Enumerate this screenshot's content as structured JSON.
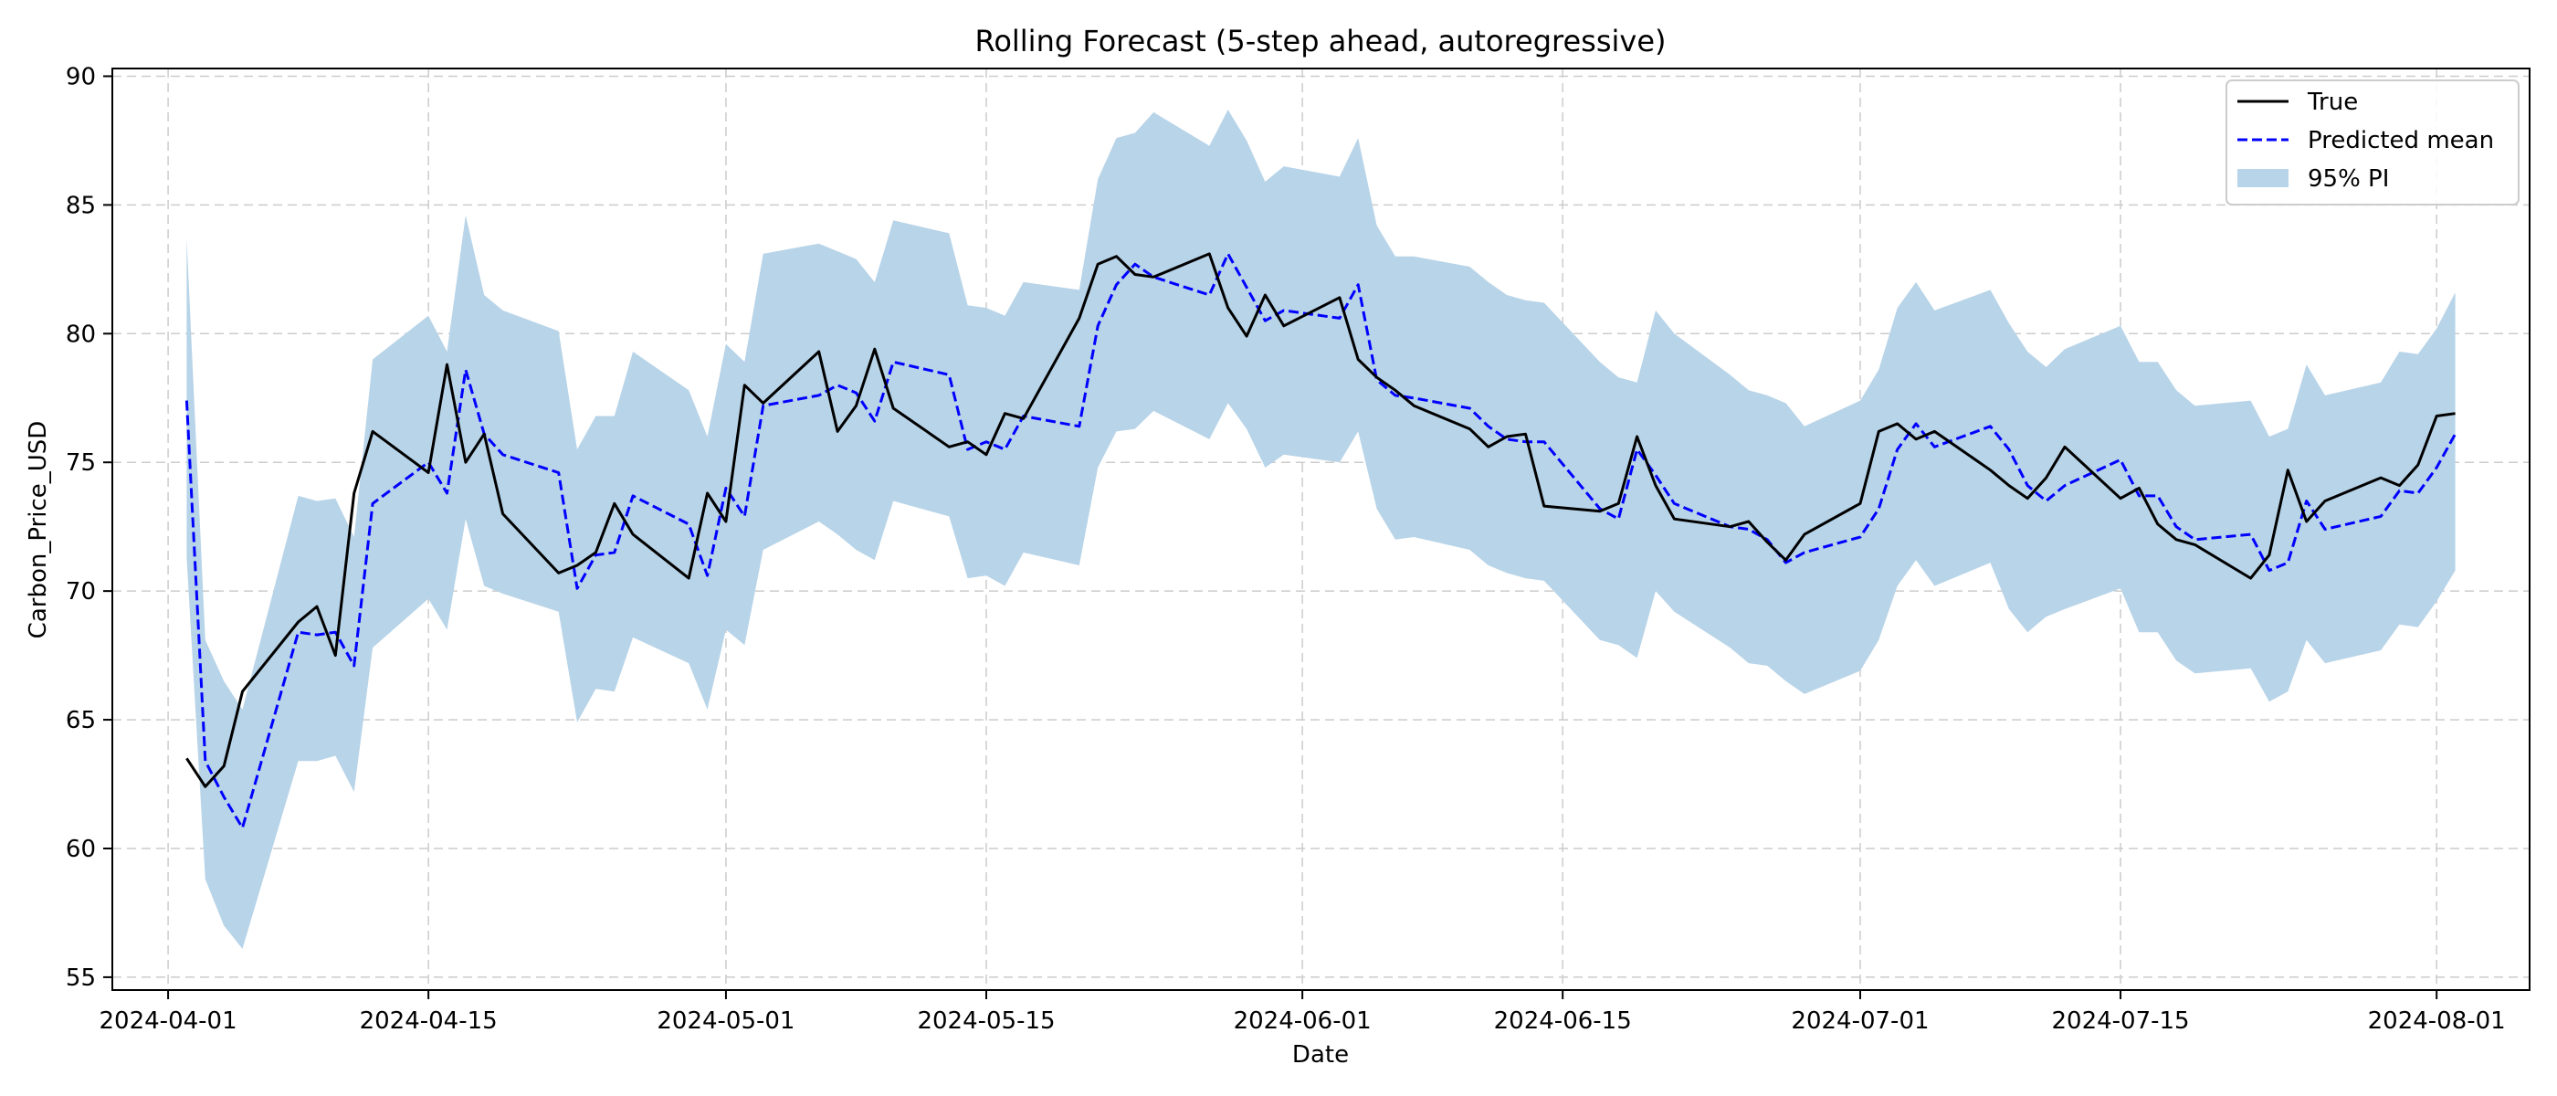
{
  "chart_data": {
    "type": "line",
    "title": "Rolling Forecast (5-step ahead, autoregressive)",
    "xlabel": "Date",
    "ylabel": "Carbon_Price_USD",
    "x_range": [
      "2024-03-29",
      "2024-08-06"
    ],
    "ylim": [
      54.5,
      90.3
    ],
    "x_ticks": [
      "2024-04-01",
      "2024-04-15",
      "2024-05-01",
      "2024-05-15",
      "2024-06-01",
      "2024-06-15",
      "2024-07-01",
      "2024-07-15",
      "2024-08-01"
    ],
    "y_ticks": [
      55,
      60,
      65,
      70,
      75,
      80,
      85,
      90
    ],
    "grid": true,
    "legend_position": "top-right",
    "x": [
      "2024-04-02",
      "2024-04-03",
      "2024-04-04",
      "2024-04-05",
      "2024-04-08",
      "2024-04-09",
      "2024-04-10",
      "2024-04-11",
      "2024-04-12",
      "2024-04-15",
      "2024-04-16",
      "2024-04-17",
      "2024-04-18",
      "2024-04-19",
      "2024-04-22",
      "2024-04-23",
      "2024-04-24",
      "2024-04-25",
      "2024-04-26",
      "2024-04-29",
      "2024-04-30",
      "2024-05-01",
      "2024-05-02",
      "2024-05-03",
      "2024-05-06",
      "2024-05-07",
      "2024-05-08",
      "2024-05-09",
      "2024-05-10",
      "2024-05-13",
      "2024-05-14",
      "2024-05-15",
      "2024-05-16",
      "2024-05-17",
      "2024-05-20",
      "2024-05-21",
      "2024-05-22",
      "2024-05-23",
      "2024-05-24",
      "2024-05-27",
      "2024-05-28",
      "2024-05-29",
      "2024-05-30",
      "2024-05-31",
      "2024-06-03",
      "2024-06-04",
      "2024-06-05",
      "2024-06-06",
      "2024-06-07",
      "2024-06-10",
      "2024-06-11",
      "2024-06-12",
      "2024-06-13",
      "2024-06-14",
      "2024-06-17",
      "2024-06-18",
      "2024-06-19",
      "2024-06-20",
      "2024-06-21",
      "2024-06-24",
      "2024-06-25",
      "2024-06-26",
      "2024-06-27",
      "2024-06-28",
      "2024-07-01",
      "2024-07-02",
      "2024-07-03",
      "2024-07-04",
      "2024-07-05",
      "2024-07-08",
      "2024-07-09",
      "2024-07-10",
      "2024-07-11",
      "2024-07-12",
      "2024-07-15",
      "2024-07-16",
      "2024-07-17",
      "2024-07-18",
      "2024-07-19",
      "2024-07-22",
      "2024-07-23",
      "2024-07-24",
      "2024-07-25",
      "2024-07-26",
      "2024-07-29",
      "2024-07-30",
      "2024-07-31",
      "2024-08-01",
      "2024-08-02"
    ],
    "series": [
      {
        "name": "True",
        "color": "#000000",
        "style": "solid",
        "values": [
          63.5,
          62.4,
          63.2,
          66.1,
          68.8,
          69.4,
          67.5,
          73.8,
          76.2,
          74.6,
          78.8,
          75.0,
          76.1,
          73.0,
          70.7,
          71.0,
          71.5,
          73.4,
          72.2,
          70.5,
          73.8,
          72.7,
          78.0,
          77.3,
          79.3,
          76.2,
          77.2,
          79.4,
          77.1,
          75.6,
          75.8,
          75.3,
          76.9,
          76.7,
          80.6,
          82.7,
          83.0,
          82.3,
          82.2,
          83.1,
          81.0,
          79.9,
          81.5,
          80.3,
          81.4,
          79.0,
          78.3,
          77.8,
          77.2,
          76.3,
          75.6,
          76.0,
          76.1,
          73.3,
          73.1,
          73.4,
          76.0,
          74.1,
          72.8,
          72.5,
          72.7,
          71.9,
          71.2,
          72.2,
          73.4,
          76.2,
          76.5,
          75.9,
          76.2,
          74.7,
          74.1,
          73.6,
          74.4,
          75.6,
          73.6,
          74.0,
          72.6,
          72.0,
          71.8,
          70.5,
          71.4,
          74.7,
          72.7,
          73.5,
          74.4,
          74.1,
          74.9,
          76.8,
          76.9
        ]
      },
      {
        "name": "Predicted mean",
        "color": "#0000ff",
        "style": "dashed",
        "values": [
          77.4,
          63.4,
          62.0,
          60.8,
          68.4,
          68.3,
          68.4,
          67.1,
          73.4,
          75.0,
          73.8,
          78.6,
          76.1,
          75.3,
          74.6,
          70.1,
          71.4,
          71.5,
          73.7,
          72.6,
          70.6,
          74.0,
          72.9,
          77.2,
          77.6,
          78.0,
          77.7,
          76.6,
          78.9,
          78.4,
          75.5,
          75.8,
          75.5,
          76.8,
          76.4,
          80.3,
          81.9,
          82.7,
          82.2,
          81.5,
          83.1,
          81.8,
          80.5,
          80.9,
          80.6,
          81.9,
          78.2,
          77.6,
          77.5,
          77.1,
          76.4,
          75.9,
          75.8,
          75.8,
          73.2,
          72.8,
          75.5,
          74.5,
          73.4,
          72.5,
          72.4,
          72.0,
          71.1,
          71.5,
          72.1,
          73.2,
          75.5,
          76.5,
          75.6,
          76.4,
          75.5,
          74.1,
          73.5,
          74.1,
          75.1,
          73.7,
          73.7,
          72.5,
          72.0,
          72.2,
          70.8,
          71.1,
          73.5,
          72.4,
          72.9,
          73.9,
          73.8,
          74.8,
          76.1
        ]
      }
    ],
    "interval": {
      "name": "95% PI",
      "color": "#b8d4e8",
      "lower": [
        71.3,
        58.8,
        57.0,
        56.1,
        63.4,
        63.4,
        63.6,
        62.2,
        67.8,
        69.7,
        68.5,
        72.8,
        70.2,
        69.9,
        69.2,
        64.9,
        66.2,
        66.1,
        68.2,
        67.2,
        65.4,
        68.5,
        67.9,
        71.6,
        72.7,
        72.2,
        71.6,
        71.2,
        73.5,
        72.9,
        70.5,
        70.6,
        70.2,
        71.5,
        71.0,
        74.8,
        76.2,
        76.3,
        77.0,
        75.9,
        77.3,
        76.3,
        74.8,
        75.3,
        75.0,
        76.2,
        73.2,
        72.0,
        72.1,
        71.6,
        71.0,
        70.7,
        70.5,
        70.4,
        68.1,
        67.9,
        67.4,
        70.0,
        69.2,
        67.8,
        67.2,
        67.1,
        66.5,
        66.0,
        66.9,
        68.1,
        70.2,
        71.2,
        70.2,
        71.1,
        69.3,
        68.4,
        69.0,
        69.3,
        70.1,
        68.4,
        68.4,
        67.3,
        66.8,
        67.0,
        65.7,
        66.1,
        68.1,
        67.2,
        67.7,
        68.7,
        68.6,
        69.6,
        70.8
      ],
      "upper": [
        83.7,
        68.1,
        66.5,
        65.4,
        73.7,
        73.5,
        73.6,
        72.1,
        79.0,
        80.7,
        79.3,
        84.6,
        81.5,
        80.9,
        80.1,
        75.5,
        76.8,
        76.8,
        79.3,
        77.8,
        76.0,
        79.6,
        78.9,
        83.1,
        83.5,
        83.2,
        82.9,
        82.0,
        84.4,
        83.9,
        81.1,
        81.0,
        80.7,
        82.0,
        81.7,
        86.0,
        87.6,
        87.8,
        88.6,
        87.3,
        88.7,
        87.5,
        85.9,
        86.5,
        86.1,
        87.6,
        84.2,
        83.0,
        83.0,
        82.6,
        82.0,
        81.5,
        81.3,
        81.2,
        78.9,
        78.3,
        78.1,
        80.9,
        80.0,
        78.4,
        77.8,
        77.6,
        77.3,
        76.4,
        77.4,
        78.6,
        81.0,
        82.0,
        80.9,
        81.7,
        80.4,
        79.3,
        78.7,
        79.4,
        80.3,
        78.9,
        78.9,
        77.8,
        77.2,
        77.4,
        76.0,
        76.3,
        78.8,
        77.6,
        78.1,
        79.3,
        79.2,
        80.2,
        81.6
      ]
    }
  }
}
